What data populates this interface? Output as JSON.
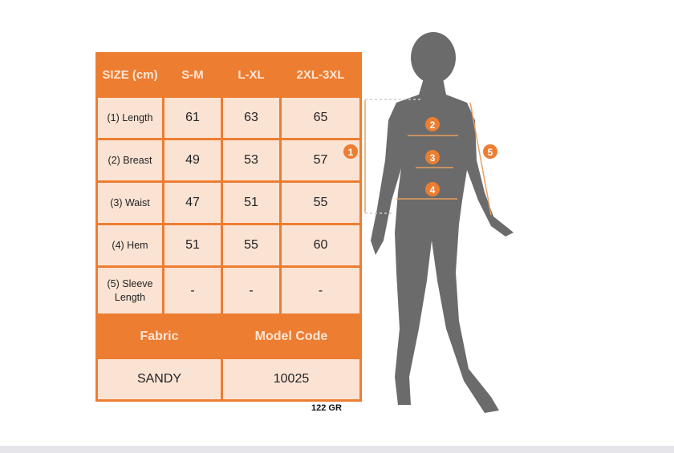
{
  "table": {
    "header": [
      "SIZE (cm)",
      "S-M",
      "L-XL",
      "2XL-3XL"
    ],
    "rows": [
      {
        "label": "(1) Length",
        "values": [
          "61",
          "63",
          "65"
        ]
      },
      {
        "label": "(2) Breast",
        "values": [
          "49",
          "53",
          "57"
        ]
      },
      {
        "label": "(3) Waist",
        "values": [
          "47",
          "51",
          "55"
        ]
      },
      {
        "label": "(4) Hem",
        "values": [
          "51",
          "55",
          "60"
        ]
      },
      {
        "label": "(5) Sleeve Length",
        "values": [
          "-",
          "-",
          "-"
        ]
      }
    ],
    "fabric_label": "Fabric",
    "model_code_label": "Model Code",
    "fabric": "SANDY",
    "model_code": "10025"
  },
  "weight": "122 GR",
  "markers": [
    "1",
    "2",
    "3",
    "4",
    "5"
  ],
  "colors": {
    "accent": "#ed7d31",
    "cell": "#fbe3d4",
    "silhouette": "#6b6b6b"
  }
}
